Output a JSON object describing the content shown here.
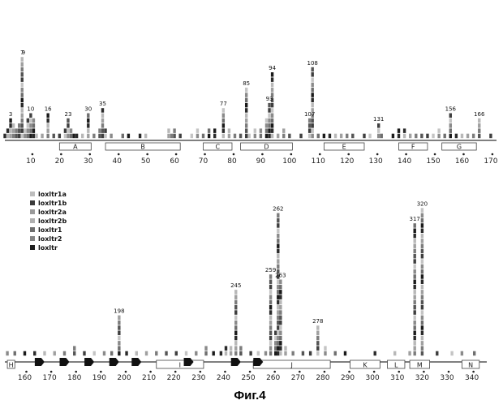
{
  "caption": "Фиг.4",
  "legend_entries": [
    {
      "name": "loxltr1a",
      "color": "#bdbdbd"
    },
    {
      "name": "loxltr1b",
      "color": "#3a3a3a"
    },
    {
      "name": "loxltr2a",
      "color": "#9a9a9a"
    },
    {
      "name": "loxltr2b",
      "color": "#b0b0b0"
    },
    {
      "name": "loxltr1",
      "color": "#6e6e6e"
    },
    {
      "name": "loxltr2",
      "color": "#858585"
    },
    {
      "name": "loxltr",
      "color": "#1e1e1e"
    }
  ],
  "chart_data": [
    {
      "type": "bar",
      "title": "",
      "xlabel": "",
      "ylabel": "",
      "xlim": [
        1,
        172
      ],
      "x_ticks": [
        10,
        20,
        30,
        40,
        50,
        60,
        70,
        80,
        90,
        100,
        110,
        120,
        130,
        140,
        150,
        160,
        170
      ],
      "x_tick_labels": [
        "10",
        "20",
        "30",
        "40",
        "50",
        "60",
        "70",
        "80",
        "90",
        "100",
        "110",
        "120",
        "130",
        "140",
        "150",
        "160",
        "170"
      ],
      "regions": [
        {
          "label": "A",
          "start": 20,
          "end": 31
        },
        {
          "label": "B",
          "start": 36,
          "end": 62
        },
        {
          "label": "C",
          "start": 70,
          "end": 80
        },
        {
          "label": "D",
          "start": 83,
          "end": 101
        },
        {
          "label": "E",
          "start": 112,
          "end": 126
        },
        {
          "label": "F",
          "start": 138,
          "end": 148
        },
        {
          "label": "G",
          "start": 153,
          "end": 165
        }
      ],
      "annotations": [
        {
          "label": "3",
          "x": 3
        },
        {
          "label": "7",
          "x": 7
        },
        {
          "label": "9",
          "x": 7.5
        },
        {
          "label": "10",
          "x": 10
        },
        {
          "label": "16",
          "x": 16
        },
        {
          "label": "23",
          "x": 23
        },
        {
          "label": "30",
          "x": 30
        },
        {
          "label": "35",
          "x": 35
        },
        {
          "label": "77",
          "x": 77
        },
        {
          "label": "85",
          "x": 85
        },
        {
          "label": "93",
          "x": 93
        },
        {
          "label": "94",
          "x": 94
        },
        {
          "label": "107",
          "x": 107
        },
        {
          "label": "108",
          "x": 108
        },
        {
          "label": "131",
          "x": 131
        },
        {
          "label": "156",
          "x": 156
        },
        {
          "label": "166",
          "x": 166
        }
      ],
      "x": [
        1,
        2,
        3,
        4,
        5,
        6,
        7,
        8,
        9,
        10,
        11,
        12,
        14,
        16,
        18,
        20,
        22,
        23,
        24,
        25,
        26,
        28,
        30,
        32,
        34,
        35,
        36,
        38,
        42,
        44,
        48,
        50,
        58,
        59,
        60,
        62,
        66,
        68,
        70,
        72,
        74,
        77,
        79,
        81,
        83,
        85,
        86,
        88,
        90,
        92,
        93,
        94,
        96,
        98,
        100,
        104,
        107,
        108,
        110,
        112,
        114,
        116,
        118,
        120,
        122,
        126,
        128,
        131,
        132,
        136,
        138,
        140,
        142,
        144,
        146,
        148,
        150,
        152,
        154,
        156,
        158,
        160,
        162,
        164,
        166,
        170
      ],
      "values": [
        1,
        2,
        4,
        3,
        2,
        3,
        16,
        2,
        4,
        5,
        4,
        1,
        1,
        5,
        1,
        1,
        2,
        4,
        2,
        1,
        1,
        1,
        5,
        1,
        2,
        6,
        2,
        1,
        1,
        1,
        1,
        1,
        2,
        1,
        2,
        1,
        1,
        2,
        1,
        2,
        2,
        6,
        2,
        1,
        1,
        10,
        1,
        2,
        2,
        4,
        7,
        13,
        1,
        2,
        1,
        1,
        4,
        14,
        1,
        1,
        1,
        1,
        1,
        1,
        1,
        1,
        1,
        3,
        1,
        1,
        2,
        2,
        1,
        1,
        1,
        1,
        1,
        2,
        1,
        5,
        1,
        1,
        1,
        1,
        4,
        1
      ]
    },
    {
      "type": "bar",
      "title": "",
      "xlabel": "",
      "ylabel": "",
      "xlim": [
        152,
        346
      ],
      "x_ticks": [
        160,
        170,
        180,
        190,
        200,
        210,
        220,
        230,
        240,
        250,
        260,
        270,
        280,
        290,
        300,
        310,
        320,
        330,
        340
      ],
      "x_tick_labels": [
        "160",
        "170",
        "180",
        "190",
        "200",
        "210",
        "220",
        "230",
        "240",
        "250",
        "260",
        "270",
        "280",
        "290",
        "300",
        "310",
        "320",
        "330",
        "340"
      ],
      "regions": [
        {
          "label": "H",
          "start": 153,
          "end": 156
        },
        {
          "label": "I",
          "start": 213,
          "end": 232
        },
        {
          "label": "J",
          "start": 252,
          "end": 283
        },
        {
          "label": "K",
          "start": 291,
          "end": 303
        },
        {
          "label": "L",
          "start": 306,
          "end": 313
        },
        {
          "label": "M",
          "start": 315,
          "end": 323
        },
        {
          "label": "N",
          "start": 336,
          "end": 343
        }
      ],
      "arrows": [
        166,
        176,
        186,
        196,
        205,
        226,
        245,
        254
      ],
      "annotations": [
        {
          "label": "198",
          "x": 198
        },
        {
          "label": "245",
          "x": 245
        },
        {
          "label": "259",
          "x": 259
        },
        {
          "label": "262",
          "x": 262
        },
        {
          "label": "263",
          "x": 263
        },
        {
          "label": "278",
          "x": 278
        },
        {
          "label": "317",
          "x": 317
        },
        {
          "label": "320",
          "x": 320
        }
      ],
      "x": [
        153,
        156,
        160,
        164,
        168,
        172,
        176,
        180,
        184,
        188,
        192,
        195,
        198,
        201,
        205,
        209,
        213,
        217,
        221,
        225,
        229,
        233,
        236,
        239,
        241,
        243,
        245,
        247,
        251,
        254,
        257,
        259,
        261,
        262,
        263,
        265,
        268,
        272,
        275,
        278,
        281,
        285,
        289,
        301,
        309,
        315,
        317,
        320,
        326,
        332,
        336,
        341
      ],
      "values": [
        1,
        1,
        1,
        1,
        1,
        1,
        1,
        2,
        1,
        1,
        1,
        1,
        8,
        1,
        1,
        1,
        1,
        1,
        1,
        1,
        1,
        2,
        1,
        1,
        2,
        2,
        13,
        2,
        1,
        1,
        1,
        16,
        5,
        28,
        15,
        2,
        1,
        1,
        1,
        6,
        2,
        1,
        1,
        1,
        1,
        1,
        26,
        29,
        1,
        1,
        1,
        1
      ]
    }
  ]
}
